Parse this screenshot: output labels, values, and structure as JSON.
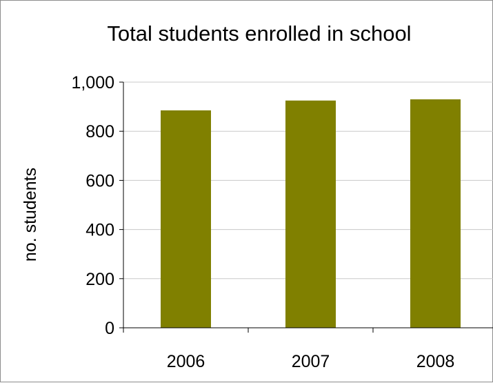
{
  "chart_data": {
    "type": "bar",
    "title": "Total students enrolled in school",
    "xlabel": "",
    "ylabel": "no. students",
    "categories": [
      "2006",
      "2007",
      "2008"
    ],
    "values": [
      885,
      925,
      930
    ],
    "ylim": [
      0,
      1000
    ],
    "yticks": [
      0,
      200,
      400,
      600,
      800,
      1000
    ],
    "ytick_labels": [
      "0",
      "200",
      "400",
      "600",
      "800",
      "1,000"
    ],
    "grid": true,
    "legend": "none",
    "bar_color": "#808000",
    "grid_color": "#c8c8c8"
  }
}
